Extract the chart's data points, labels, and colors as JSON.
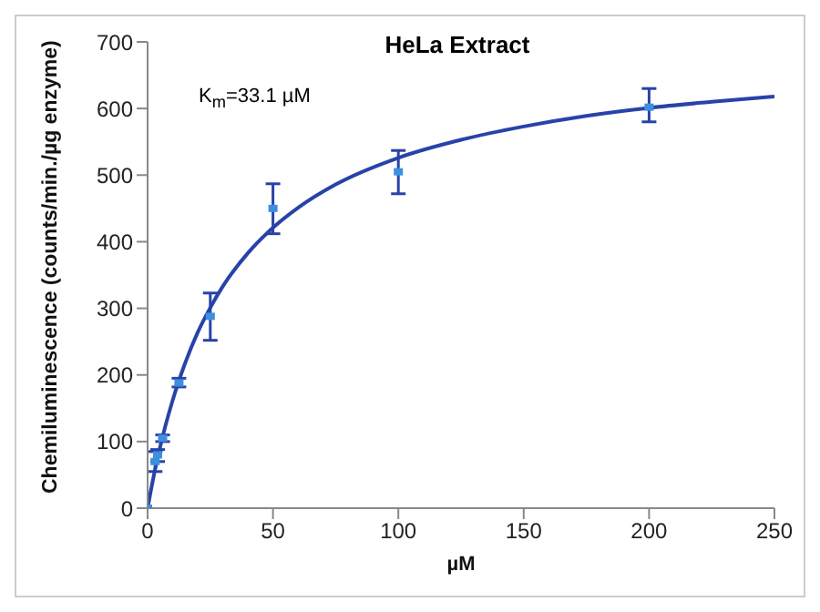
{
  "chart_data": {
    "type": "scatter",
    "title": "HeLa Extract",
    "xlabel": "µM",
    "ylabel": "Chemiluminescence (counts/min./µg enzyme)",
    "annotations": [
      "K$_{m}$=33.1 µM"
    ],
    "xlim": [
      0,
      250
    ],
    "xticks": [
      0,
      50,
      100,
      150,
      200,
      250
    ],
    "ylim": [
      0,
      700
    ],
    "yticks": [
      0,
      100,
      200,
      300,
      400,
      500,
      600,
      700
    ],
    "marker": "square",
    "series": [
      {
        "color": "#3d8fe0",
        "x": [
          0,
          3,
          4,
          6,
          12.5,
          25,
          50,
          100,
          200
        ],
        "values": [
          0,
          70,
          80,
          105,
          188,
          288,
          450,
          505,
          602
        ],
        "errors": [
          null,
          [
            55,
            85
          ],
          [
            70,
            88
          ],
          [
            100,
            110
          ],
          [
            182,
            195
          ],
          [
            252,
            323
          ],
          [
            412,
            487
          ],
          [
            472,
            537
          ],
          [
            580,
            630
          ]
        ]
      },
      {
        "type": "line",
        "color": "#2843a8",
        "line_style": "solid",
        "marker": "none",
        "x": [
          0,
          2,
          5,
          10,
          15,
          20,
          25,
          30,
          40,
          50,
          60,
          75,
          100,
          125,
          150,
          175,
          200,
          225,
          250
        ],
        "values": [
          0,
          40,
          92,
          162,
          218,
          264,
          301,
          333,
          383,
          421,
          451,
          486,
          526,
          553,
          573,
          589,
          601,
          610,
          618
        ]
      }
    ]
  }
}
